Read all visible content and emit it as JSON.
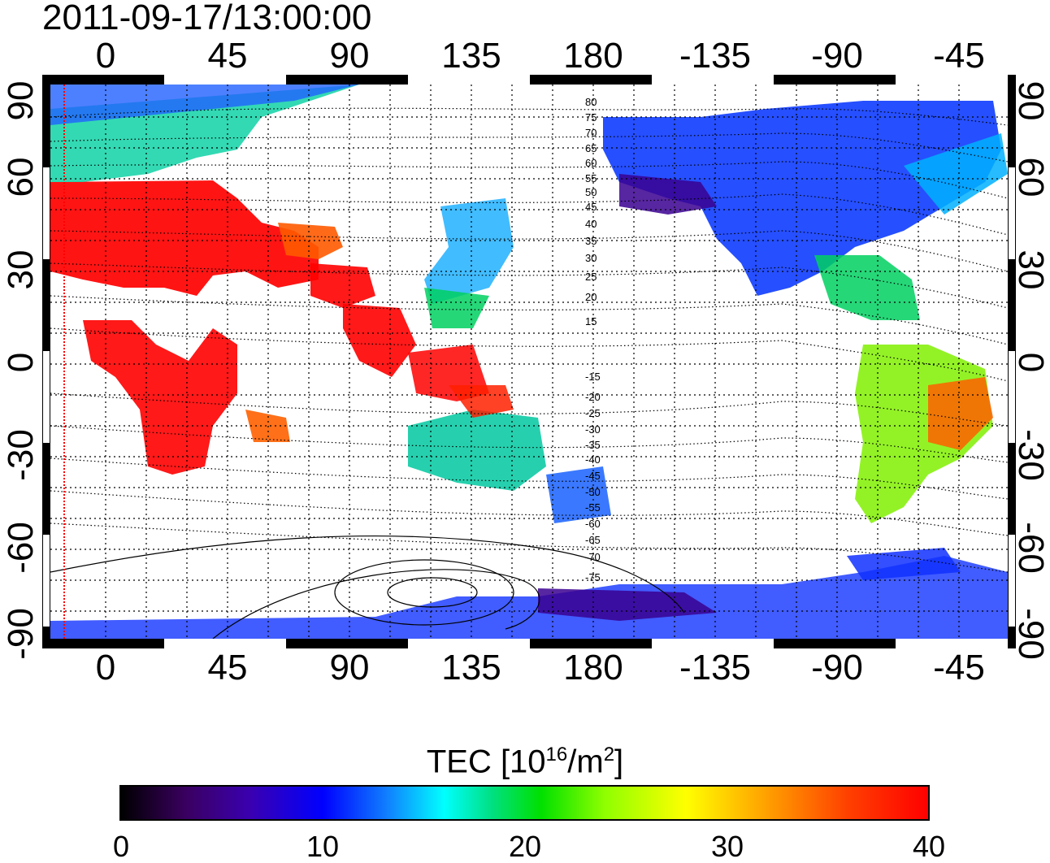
{
  "title": "2011-09-17/13:00:00",
  "axes": {
    "top_lon_labels": [
      "0",
      "45",
      "90",
      "135",
      "180",
      "-135",
      "-90",
      "-45"
    ],
    "bottom_lon_labels": [
      "0",
      "45",
      "90",
      "135",
      "180",
      "-135",
      "-90",
      "-45"
    ],
    "left_lat_labels": [
      "90",
      "60",
      "30",
      "0",
      "-30",
      "-60",
      "-90"
    ],
    "right_lat_labels": [
      "90",
      "60",
      "30",
      "0",
      "-30",
      "-60",
      "-90"
    ]
  },
  "contour_labels": [
    "80",
    "75",
    "70",
    "65",
    "60",
    "55",
    "50",
    "45",
    "40",
    "35",
    "30",
    "25",
    "20",
    "15",
    "-15",
    "-20",
    "-25",
    "-30",
    "-35",
    "-40",
    "-45",
    "-50",
    "-55",
    "-60",
    "-65",
    "-70",
    "-75"
  ],
  "colorbar": {
    "title_main": "TEC  [10",
    "title_sup1": "16",
    "title_mid": "/m",
    "title_sup2": "2",
    "title_end": "]",
    "ticks": [
      "0",
      "10",
      "20",
      "30",
      "40"
    ],
    "range": [
      0,
      40
    ]
  },
  "colors": {
    "low": "#000000",
    "mid": "#00ffff",
    "high": "#ff0000",
    "terminator_line": "#ff0000"
  }
}
